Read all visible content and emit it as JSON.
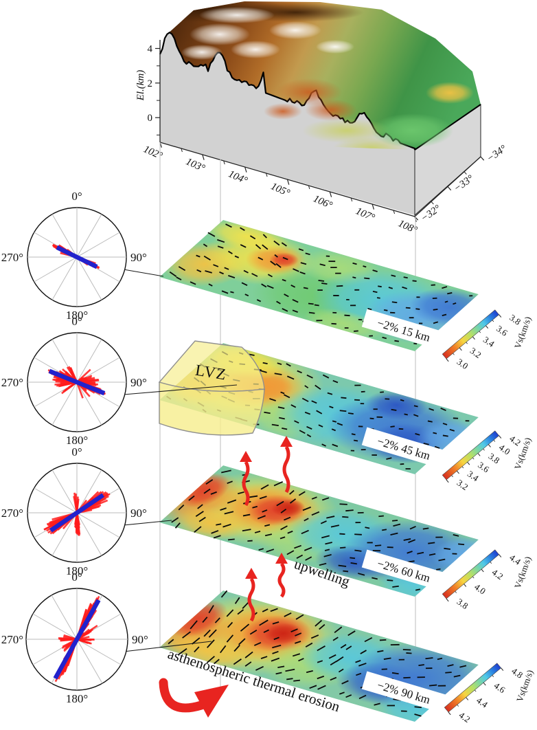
{
  "terrain": {
    "el_axis": {
      "label": "El.(km)",
      "ticks": [
        "4",
        "2",
        "0"
      ]
    },
    "lon_ticks": [
      "102°",
      "103°",
      "104°",
      "105°",
      "106°",
      "107°",
      "108°"
    ],
    "lat_ticks": [
      "−32°",
      "−33°",
      "−34°"
    ]
  },
  "roses": [
    {
      "labels": {
        "top": "0°",
        "right": "90°",
        "bottom": "180°",
        "left": "270°"
      },
      "bar_azimuth_deg": 116,
      "bar_half_len": 0.45,
      "petal_lobes": [
        {
          "azimuth_deg": 116,
          "spread_deg": 15,
          "max_len": 0.58,
          "count": 64
        }
      ]
    },
    {
      "labels": {
        "top": "0°",
        "right": "90°",
        "bottom": "180°",
        "left": "270°"
      },
      "bar_azimuth_deg": 112,
      "bar_half_len": 0.6,
      "petal_lobes": [
        {
          "azimuth_deg": 112,
          "spread_deg": 18,
          "max_len": 0.66,
          "count": 46
        },
        {
          "azimuth_deg": 100,
          "spread_deg": 85,
          "max_len": 0.52,
          "count": 80
        }
      ]
    },
    {
      "labels": {
        "top": "0°",
        "right": "90°",
        "bottom": "180°",
        "left": "270°"
      },
      "bar_azimuth_deg": 56,
      "bar_half_len": 0.64,
      "petal_lobes": [
        {
          "azimuth_deg": 58,
          "spread_deg": 26,
          "max_len": 0.82,
          "count": 60
        },
        {
          "azimuth_deg": 176,
          "spread_deg": 13,
          "max_len": 0.55,
          "count": 18
        },
        {
          "azimuth_deg": 2,
          "spread_deg": 12,
          "max_len": 0.4,
          "count": 12
        }
      ]
    },
    {
      "labels": {
        "top": "0°",
        "right": "90°",
        "bottom": "180°",
        "left": "270°"
      },
      "bar_azimuth_deg": 29,
      "bar_half_len": 0.88,
      "petal_lobes": [
        {
          "azimuth_deg": 27,
          "spread_deg": 13,
          "max_len": 0.97,
          "count": 60
        },
        {
          "azimuth_deg": 95,
          "spread_deg": 25,
          "max_len": 0.42,
          "count": 22
        },
        {
          "azimuth_deg": 55,
          "spread_deg": 18,
          "max_len": 0.5,
          "count": 14
        }
      ]
    }
  ],
  "slices": [
    {
      "depth_label": "−2% 15 km",
      "colorbar": {
        "label": "Vs(km/s)",
        "ticks": [
          "3.8",
          "3.6",
          "3.4",
          "3.2",
          "3.0"
        ]
      }
    },
    {
      "depth_label": "−2% 45 km",
      "colorbar": {
        "label": "Vs(km/s)",
        "ticks": [
          "4.2",
          "4.0",
          "3.8",
          "3.6",
          "3.4",
          "3.2"
        ]
      }
    },
    {
      "depth_label": "−2% 60 km",
      "colorbar": {
        "label": "Vs(km/s)",
        "ticks": [
          "4.4",
          "4.2",
          "4.0",
          "3.8"
        ]
      }
    },
    {
      "depth_label": "−2% 90 km",
      "colorbar": {
        "label": "Vs(km/s)",
        "ticks": [
          "4.8",
          "4.6",
          "4.4",
          "4.2"
        ]
      }
    }
  ],
  "annotations": {
    "lvz": "LVZ",
    "upwelling": "upwelling",
    "erosion": "asthenospheric thermal erosion"
  },
  "colors": {
    "slow_anomaly": "#e0402a",
    "fast_anomaly": "#2b55c4",
    "rose_petal": "#ff1c1c",
    "rose_bar": "#2222cc",
    "arrow_red": "#e82420",
    "lvz_fill": "#f6ee8c",
    "guide_line": "#c9c9c9"
  }
}
